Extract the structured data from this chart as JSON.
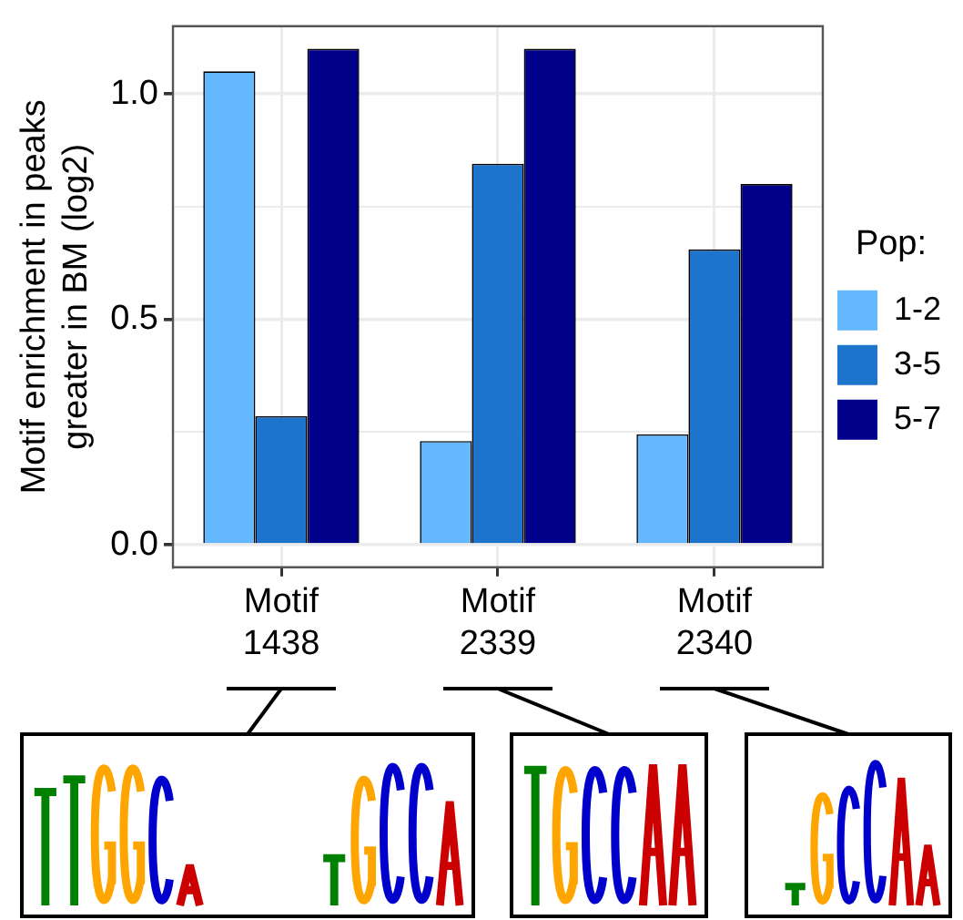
{
  "chart_data": {
    "type": "bar",
    "ylabel": "Motif enrichment in peaks greater in BM (log2)",
    "legend_title": "Pop:",
    "categories": [
      "Motif 1438",
      "Motif 2339",
      "Motif 2340"
    ],
    "series": [
      {
        "name": "1-2",
        "color": "#63b8ff",
        "values": [
          1.05,
          0.23,
          0.245
        ]
      },
      {
        "name": "3-5",
        "color": "#1c74cd",
        "values": [
          0.285,
          0.845,
          0.655
        ]
      },
      {
        "name": "5-7",
        "color": "#00008b",
        "values": [
          1.1,
          1.1,
          0.8
        ]
      }
    ],
    "ylim": [
      -0.05,
      1.15
    ],
    "yticks": [
      {
        "value": 0,
        "label": "0.0"
      },
      {
        "value": 0.25,
        "label": null
      },
      0.5,
      {
        "value": 0.75,
        "label": null
      },
      {
        "value": 1,
        "label": "1.0"
      }
    ],
    "grid": true,
    "legend": "right"
  }
}
